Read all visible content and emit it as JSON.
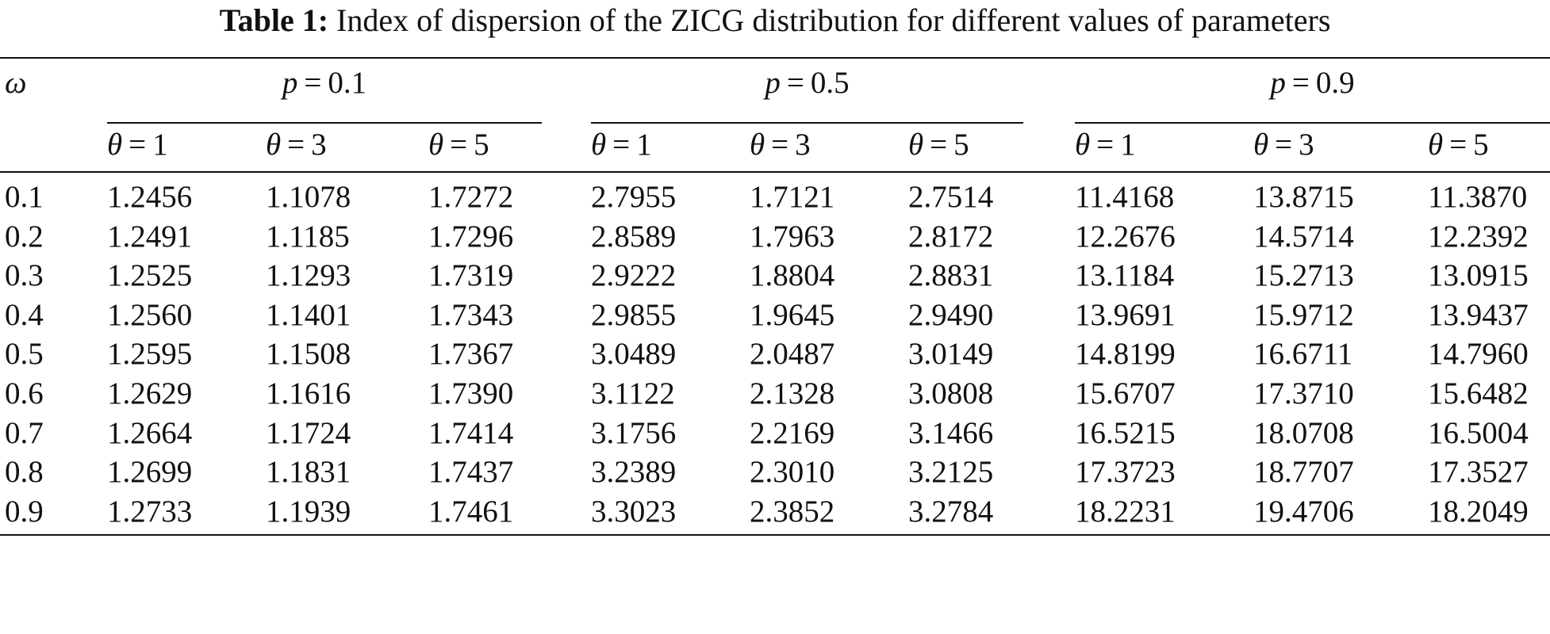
{
  "caption": {
    "label": "Table 1:",
    "text": "Index of dispersion of the ZICG distribution for different values of parameters"
  },
  "header": {
    "row_label": "ω",
    "p_symbol": "p",
    "theta_symbol": "θ",
    "equals": "=",
    "groups": [
      {
        "p_value": "0.1",
        "thetas": [
          "1",
          "3",
          "5"
        ]
      },
      {
        "p_value": "0.5",
        "thetas": [
          "1",
          "3",
          "5"
        ]
      },
      {
        "p_value": "0.9",
        "thetas": [
          "1",
          "3",
          "5"
        ]
      }
    ]
  },
  "rows": [
    {
      "omega": "0.1",
      "values": [
        "1.2456",
        "1.1078",
        "1.7272",
        "2.7955",
        "1.7121",
        "2.7514",
        "11.4168",
        "13.8715",
        "11.3870"
      ]
    },
    {
      "omega": "0.2",
      "values": [
        "1.2491",
        "1.1185",
        "1.7296",
        "2.8589",
        "1.7963",
        "2.8172",
        "12.2676",
        "14.5714",
        "12.2392"
      ]
    },
    {
      "omega": "0.3",
      "values": [
        "1.2525",
        "1.1293",
        "1.7319",
        "2.9222",
        "1.8804",
        "2.8831",
        "13.1184",
        "15.2713",
        "13.0915"
      ]
    },
    {
      "omega": "0.4",
      "values": [
        "1.2560",
        "1.1401",
        "1.7343",
        "2.9855",
        "1.9645",
        "2.9490",
        "13.9691",
        "15.9712",
        "13.9437"
      ]
    },
    {
      "omega": "0.5",
      "values": [
        "1.2595",
        "1.1508",
        "1.7367",
        "3.0489",
        "2.0487",
        "3.0149",
        "14.8199",
        "16.6711",
        "14.7960"
      ]
    },
    {
      "omega": "0.6",
      "values": [
        "1.2629",
        "1.1616",
        "1.7390",
        "3.1122",
        "2.1328",
        "3.0808",
        "15.6707",
        "17.3710",
        "15.6482"
      ]
    },
    {
      "omega": "0.7",
      "values": [
        "1.2664",
        "1.1724",
        "1.7414",
        "3.1756",
        "2.2169",
        "3.1466",
        "16.5215",
        "18.0708",
        "16.5004"
      ]
    },
    {
      "omega": "0.8",
      "values": [
        "1.2699",
        "1.1831",
        "1.7437",
        "3.2389",
        "2.3010",
        "3.2125",
        "17.3723",
        "18.7707",
        "17.3527"
      ]
    },
    {
      "omega": "0.9",
      "values": [
        "1.2733",
        "1.1939",
        "1.7461",
        "3.3023",
        "2.3852",
        "3.2784",
        "18.2231",
        "19.4706",
        "18.2049"
      ]
    }
  ]
}
